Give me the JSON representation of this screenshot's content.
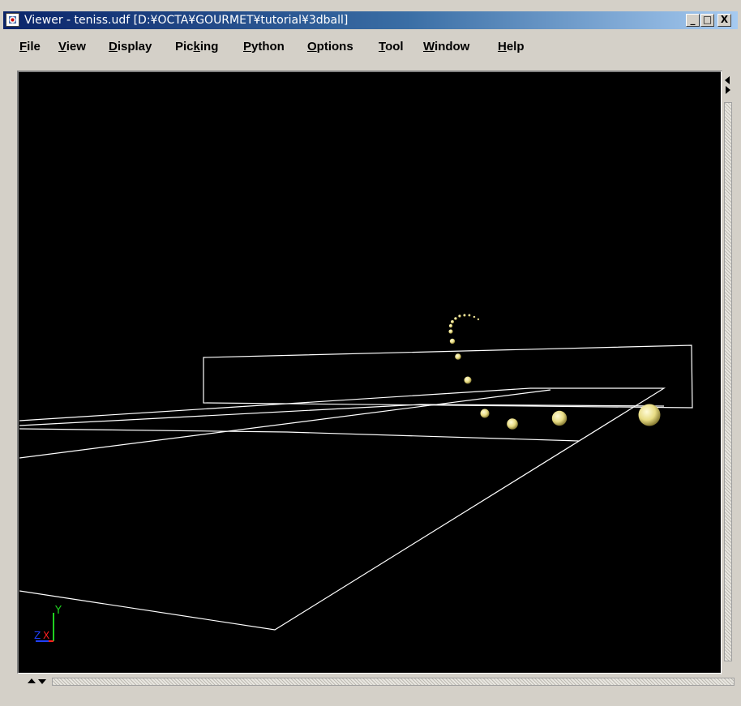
{
  "window": {
    "title": "Viewer - teniss.udf [D:¥OCTA¥GOURMET¥tutorial¥3dball]",
    "controls": {
      "minimize": "_",
      "maximize": "□",
      "close": "X"
    }
  },
  "menu": {
    "items": [
      {
        "label": "File",
        "mnemonic": "F"
      },
      {
        "label": "View",
        "mnemonic": "V"
      },
      {
        "label": "Display",
        "mnemonic": "D"
      },
      {
        "label": "Picking",
        "mnemonic": "k"
      },
      {
        "label": "Python",
        "mnemonic": "P"
      },
      {
        "label": "Options",
        "mnemonic": "O"
      },
      {
        "label": "Tool",
        "mnemonic": "T"
      },
      {
        "label": "Window",
        "mnemonic": "W"
      },
      {
        "label": "Help",
        "mnemonic": "H"
      }
    ]
  },
  "axes": {
    "y_label": "Y",
    "z_label": "Z",
    "x_label": "X",
    "colors": {
      "x": "#ff2020",
      "y": "#20d020",
      "z": "#2040ff"
    }
  },
  "scene": {
    "background": "#000000",
    "wire_color": "#ffffff",
    "ball_color": "#f0e890",
    "ball_count": 21
  },
  "icons": {
    "vscroll_left": "arrow-left-icon",
    "vscroll_right": "arrow-right-icon",
    "hscroll_up": "arrow-up-icon",
    "hscroll_down": "arrow-down-icon"
  }
}
